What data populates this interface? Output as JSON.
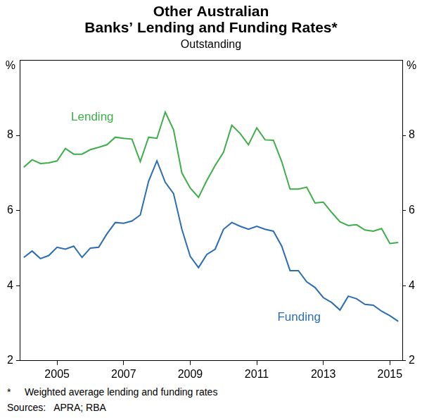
{
  "chart_data": {
    "type": "line",
    "title": [
      "Other Australian",
      "Banks’ Lending and Funding Rates*"
    ],
    "subtitle": "Outstanding",
    "y_label": "%",
    "footnote": "*     Weighted average lending and funding rates",
    "source": "Sources:   APRA; RBA",
    "categories": [
      null,
      null,
      null,
      null,
      "2005",
      null,
      null,
      null,
      null,
      null,
      null,
      null,
      "2007",
      null,
      null,
      null,
      null,
      null,
      null,
      null,
      "2009",
      null,
      null,
      null,
      null,
      null,
      null,
      null,
      "2011",
      null,
      null,
      null,
      null,
      null,
      null,
      null,
      "2013",
      null,
      null,
      null,
      null,
      null,
      null,
      null,
      "2015",
      null
    ],
    "series": [
      {
        "name": "Lending",
        "color": "#3dae49",
        "values": [
          7.15,
          7.35,
          7.25,
          7.27,
          7.32,
          7.65,
          7.5,
          7.5,
          7.62,
          7.68,
          7.75,
          7.95,
          7.92,
          7.9,
          7.3,
          7.95,
          7.92,
          8.62,
          8.15,
          7.0,
          6.6,
          6.35,
          6.8,
          7.2,
          7.55,
          8.27,
          8.05,
          7.75,
          8.2,
          7.88,
          7.87,
          7.3,
          6.57,
          6.57,
          6.62,
          6.2,
          6.22,
          5.95,
          5.7,
          5.6,
          5.62,
          5.48,
          5.45,
          5.52,
          5.12,
          5.15
        ]
      },
      {
        "name": "Funding",
        "color": "#2a6db5",
        "values": [
          4.75,
          4.92,
          4.72,
          4.8,
          5.02,
          4.97,
          5.05,
          4.75,
          5.0,
          5.02,
          5.38,
          5.68,
          5.66,
          5.72,
          5.88,
          6.78,
          7.32,
          6.75,
          6.45,
          5.5,
          4.78,
          4.48,
          4.83,
          4.97,
          5.5,
          5.68,
          5.58,
          5.5,
          5.58,
          5.5,
          5.45,
          5.05,
          4.4,
          4.4,
          4.1,
          3.95,
          3.68,
          3.55,
          3.35,
          3.72,
          3.65,
          3.5,
          3.48,
          3.32,
          3.2,
          3.05
        ]
      }
    ],
    "ylim": [
      2,
      10
    ],
    "yticks": [
      2,
      4,
      6,
      8
    ],
    "y2lim": [
      2,
      10
    ],
    "y2ticks": [
      2,
      4,
      6,
      8
    ],
    "grid": false
  }
}
